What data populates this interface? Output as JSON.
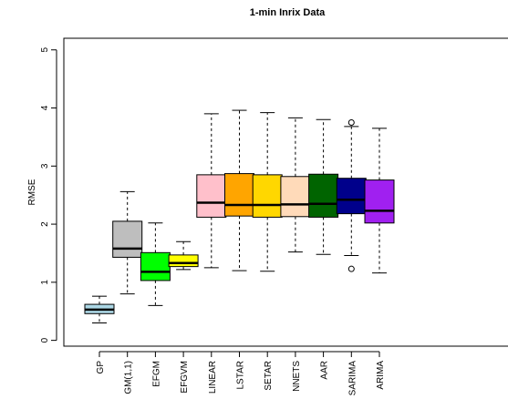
{
  "chart_data": {
    "type": "boxplot",
    "title": "1-min Inrix Data",
    "xlabel": "",
    "ylabel": "RMSE",
    "ylim": [
      -0.1,
      5.2
    ],
    "yticks": [
      0,
      1,
      2,
      3,
      4,
      5
    ],
    "grid": false,
    "legend": "none",
    "categories": [
      "GP",
      "GM(1,1)",
      "EFGM",
      "EFGVM",
      "LINEAR",
      "LSTAR",
      "SETAR",
      "NNETS",
      "AAR",
      "SARIMA",
      "ARIMA"
    ],
    "boxes": [
      {
        "label": "GP",
        "color": "#ADD8E6",
        "whisker_low": 0.3,
        "q1": 0.46,
        "median": 0.53,
        "q3": 0.62,
        "whisker_high": 0.76,
        "outliers": []
      },
      {
        "label": "GM(1,1)",
        "color": "#BEBEBE",
        "whisker_low": 0.8,
        "q1": 1.43,
        "median": 1.58,
        "q3": 2.05,
        "whisker_high": 2.56,
        "outliers": []
      },
      {
        "label": "EFGM",
        "color": "#00FF00",
        "whisker_low": 0.6,
        "q1": 1.03,
        "median": 1.18,
        "q3": 1.51,
        "whisker_high": 2.02,
        "outliers": []
      },
      {
        "label": "EFGVM",
        "color": "#FFFF00",
        "whisker_low": 1.22,
        "q1": 1.27,
        "median": 1.33,
        "q3": 1.47,
        "whisker_high": 1.7,
        "outliers": []
      },
      {
        "label": "LINEAR",
        "color": "#FFC0CB",
        "whisker_low": 1.25,
        "q1": 2.12,
        "median": 2.37,
        "q3": 2.85,
        "whisker_high": 3.9,
        "outliers": []
      },
      {
        "label": "LSTAR",
        "color": "#FFA500",
        "whisker_low": 1.2,
        "q1": 2.14,
        "median": 2.33,
        "q3": 2.87,
        "whisker_high": 3.96,
        "outliers": []
      },
      {
        "label": "SETAR",
        "color": "#FFD700",
        "whisker_low": 1.19,
        "q1": 2.12,
        "median": 2.33,
        "q3": 2.85,
        "whisker_high": 3.92,
        "outliers": []
      },
      {
        "label": "NNETS",
        "color": "#FFDAB9",
        "whisker_low": 1.52,
        "q1": 2.13,
        "median": 2.34,
        "q3": 2.82,
        "whisker_high": 3.83,
        "outliers": []
      },
      {
        "label": "AAR",
        "color": "#006400",
        "whisker_low": 1.48,
        "q1": 2.12,
        "median": 2.35,
        "q3": 2.86,
        "whisker_high": 3.8,
        "outliers": []
      },
      {
        "label": "SARIMA",
        "color": "#00008B",
        "whisker_low": 1.46,
        "q1": 2.18,
        "median": 2.42,
        "q3": 2.79,
        "whisker_high": 3.68,
        "outliers": [
          1.23,
          3.75
        ]
      },
      {
        "label": "ARIMA",
        "color": "#A020F0",
        "whisker_low": 1.16,
        "q1": 2.02,
        "median": 2.23,
        "q3": 2.76,
        "whisker_high": 3.65,
        "outliers": []
      }
    ]
  }
}
